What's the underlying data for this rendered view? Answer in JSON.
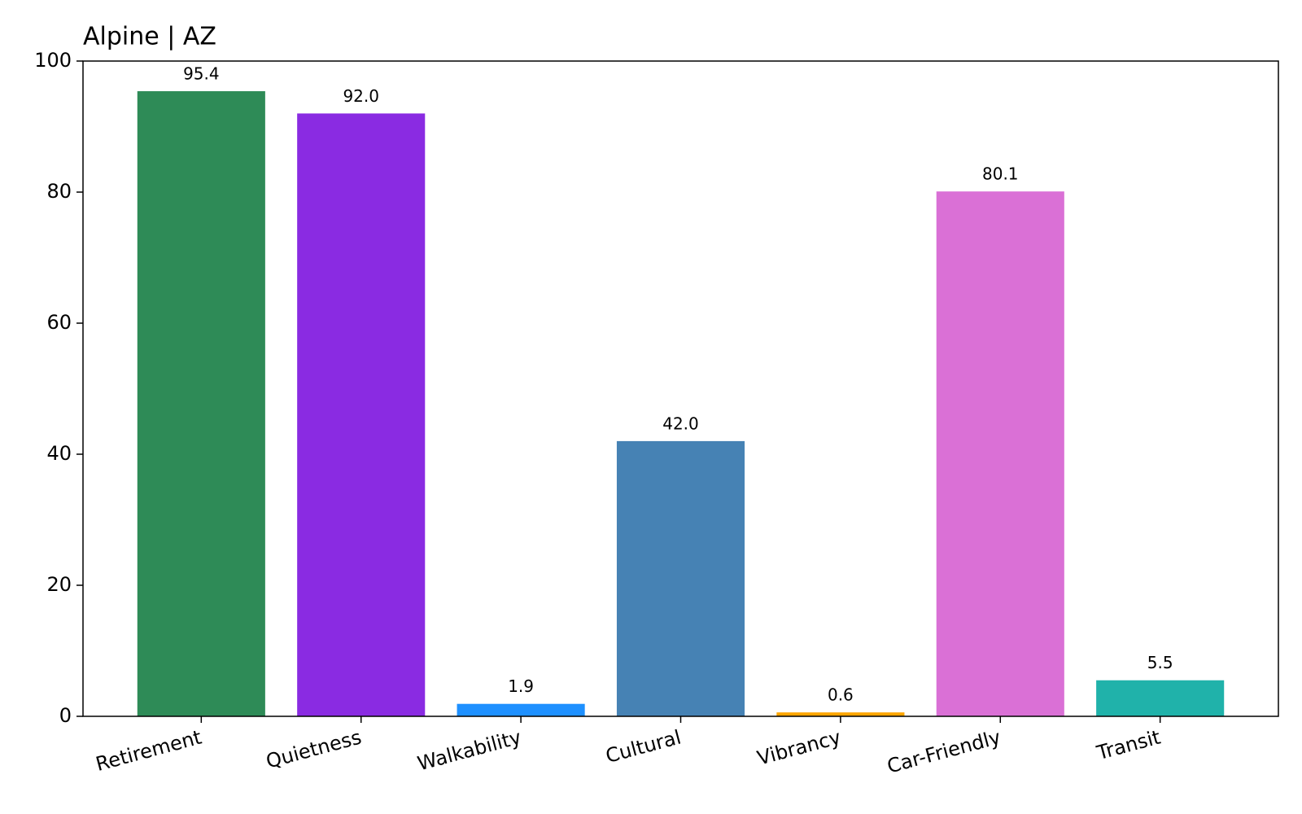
{
  "chart_data": {
    "type": "bar",
    "title": "Alpine | AZ",
    "categories": [
      "Retirement",
      "Quietness",
      "Walkability",
      "Cultural",
      "Vibrancy",
      "Car-Friendly",
      "Transit"
    ],
    "values": [
      95.4,
      92.0,
      1.9,
      42.0,
      0.6,
      80.1,
      5.5
    ],
    "value_labels": [
      "95.4",
      "92.0",
      "1.9",
      "42.0",
      "0.6",
      "80.1",
      "5.5"
    ],
    "colors": [
      "#2e8b57",
      "#8a2be2",
      "#1e90ff",
      "#4682b4",
      "#ffa500",
      "#da70d6",
      "#20b2aa"
    ],
    "ylim": [
      0,
      100
    ],
    "yticks": [
      0,
      20,
      40,
      60,
      80,
      100
    ]
  }
}
